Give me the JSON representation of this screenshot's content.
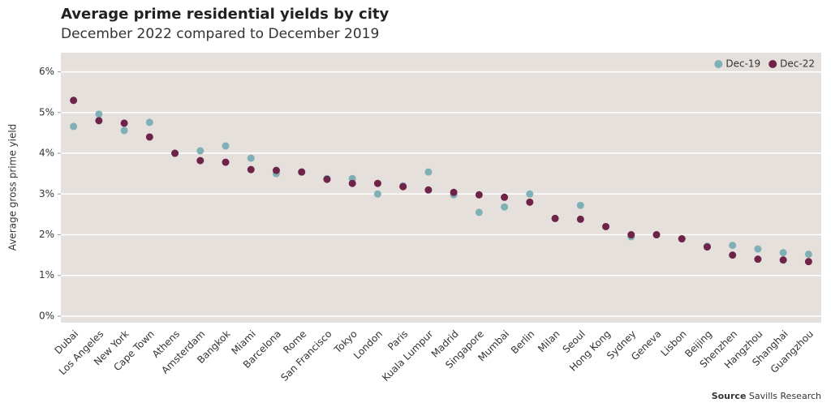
{
  "chart_data": {
    "type": "scatter",
    "title": "Average prime residential yields by city",
    "subtitle": "December 2022 compared to December 2019",
    "y_label": "Average gross prime yield",
    "source_label": "Source",
    "source": "Savills Research",
    "categories": [
      "Dubai",
      "Los Angeles",
      "New York",
      "Cape Town",
      "Athens",
      "Amsterdam",
      "Bangkok",
      "Miami",
      "Barcelona",
      "Rome",
      "San Francisco",
      "Tokyo",
      "London",
      "Paris",
      "Kuala Lumpur",
      "Madrid",
      "Singapore",
      "Mumbai",
      "Berlin",
      "Milan",
      "Seoul",
      "Hong Kong",
      "Sydney",
      "Geneva",
      "Lisbon",
      "Beijing",
      "Shenzhen",
      "Hangzhou",
      "Shanghai",
      "Guangzhou"
    ],
    "series": [
      {
        "name": "Dec-19",
        "color": "#7fb0b5",
        "values": [
          4.66,
          4.96,
          4.56,
          4.76,
          4.0,
          4.06,
          4.18,
          3.88,
          3.5,
          3.54,
          3.38,
          3.38,
          3.0,
          3.2,
          3.54,
          2.98,
          2.55,
          2.68,
          3.0,
          2.4,
          2.72,
          2.2,
          1.95,
          2.0,
          1.9,
          1.72,
          1.74,
          1.65,
          1.56,
          1.52
        ]
      },
      {
        "name": "Dec-22",
        "color": "#6e2448",
        "values": [
          5.3,
          4.8,
          4.74,
          4.4,
          4.0,
          3.82,
          3.78,
          3.6,
          3.58,
          3.54,
          3.36,
          3.26,
          3.26,
          3.18,
          3.1,
          3.04,
          2.98,
          2.92,
          2.8,
          2.4,
          2.38,
          2.2,
          2.0,
          2.0,
          1.9,
          1.7,
          1.5,
          1.4,
          1.38,
          1.34
        ]
      }
    ],
    "ylim": [
      -0.16,
      6.47
    ],
    "yticks": [
      {
        "value": 0,
        "label": "0%"
      },
      {
        "value": 1,
        "label": "1%"
      },
      {
        "value": 2,
        "label": "2%"
      },
      {
        "value": 3,
        "label": "3%"
      },
      {
        "value": 4,
        "label": "4%"
      },
      {
        "value": 5,
        "label": "5%"
      },
      {
        "value": 6,
        "label": "6%"
      }
    ],
    "grid": true,
    "legend": "top-right",
    "background": "#e6e0dc"
  }
}
